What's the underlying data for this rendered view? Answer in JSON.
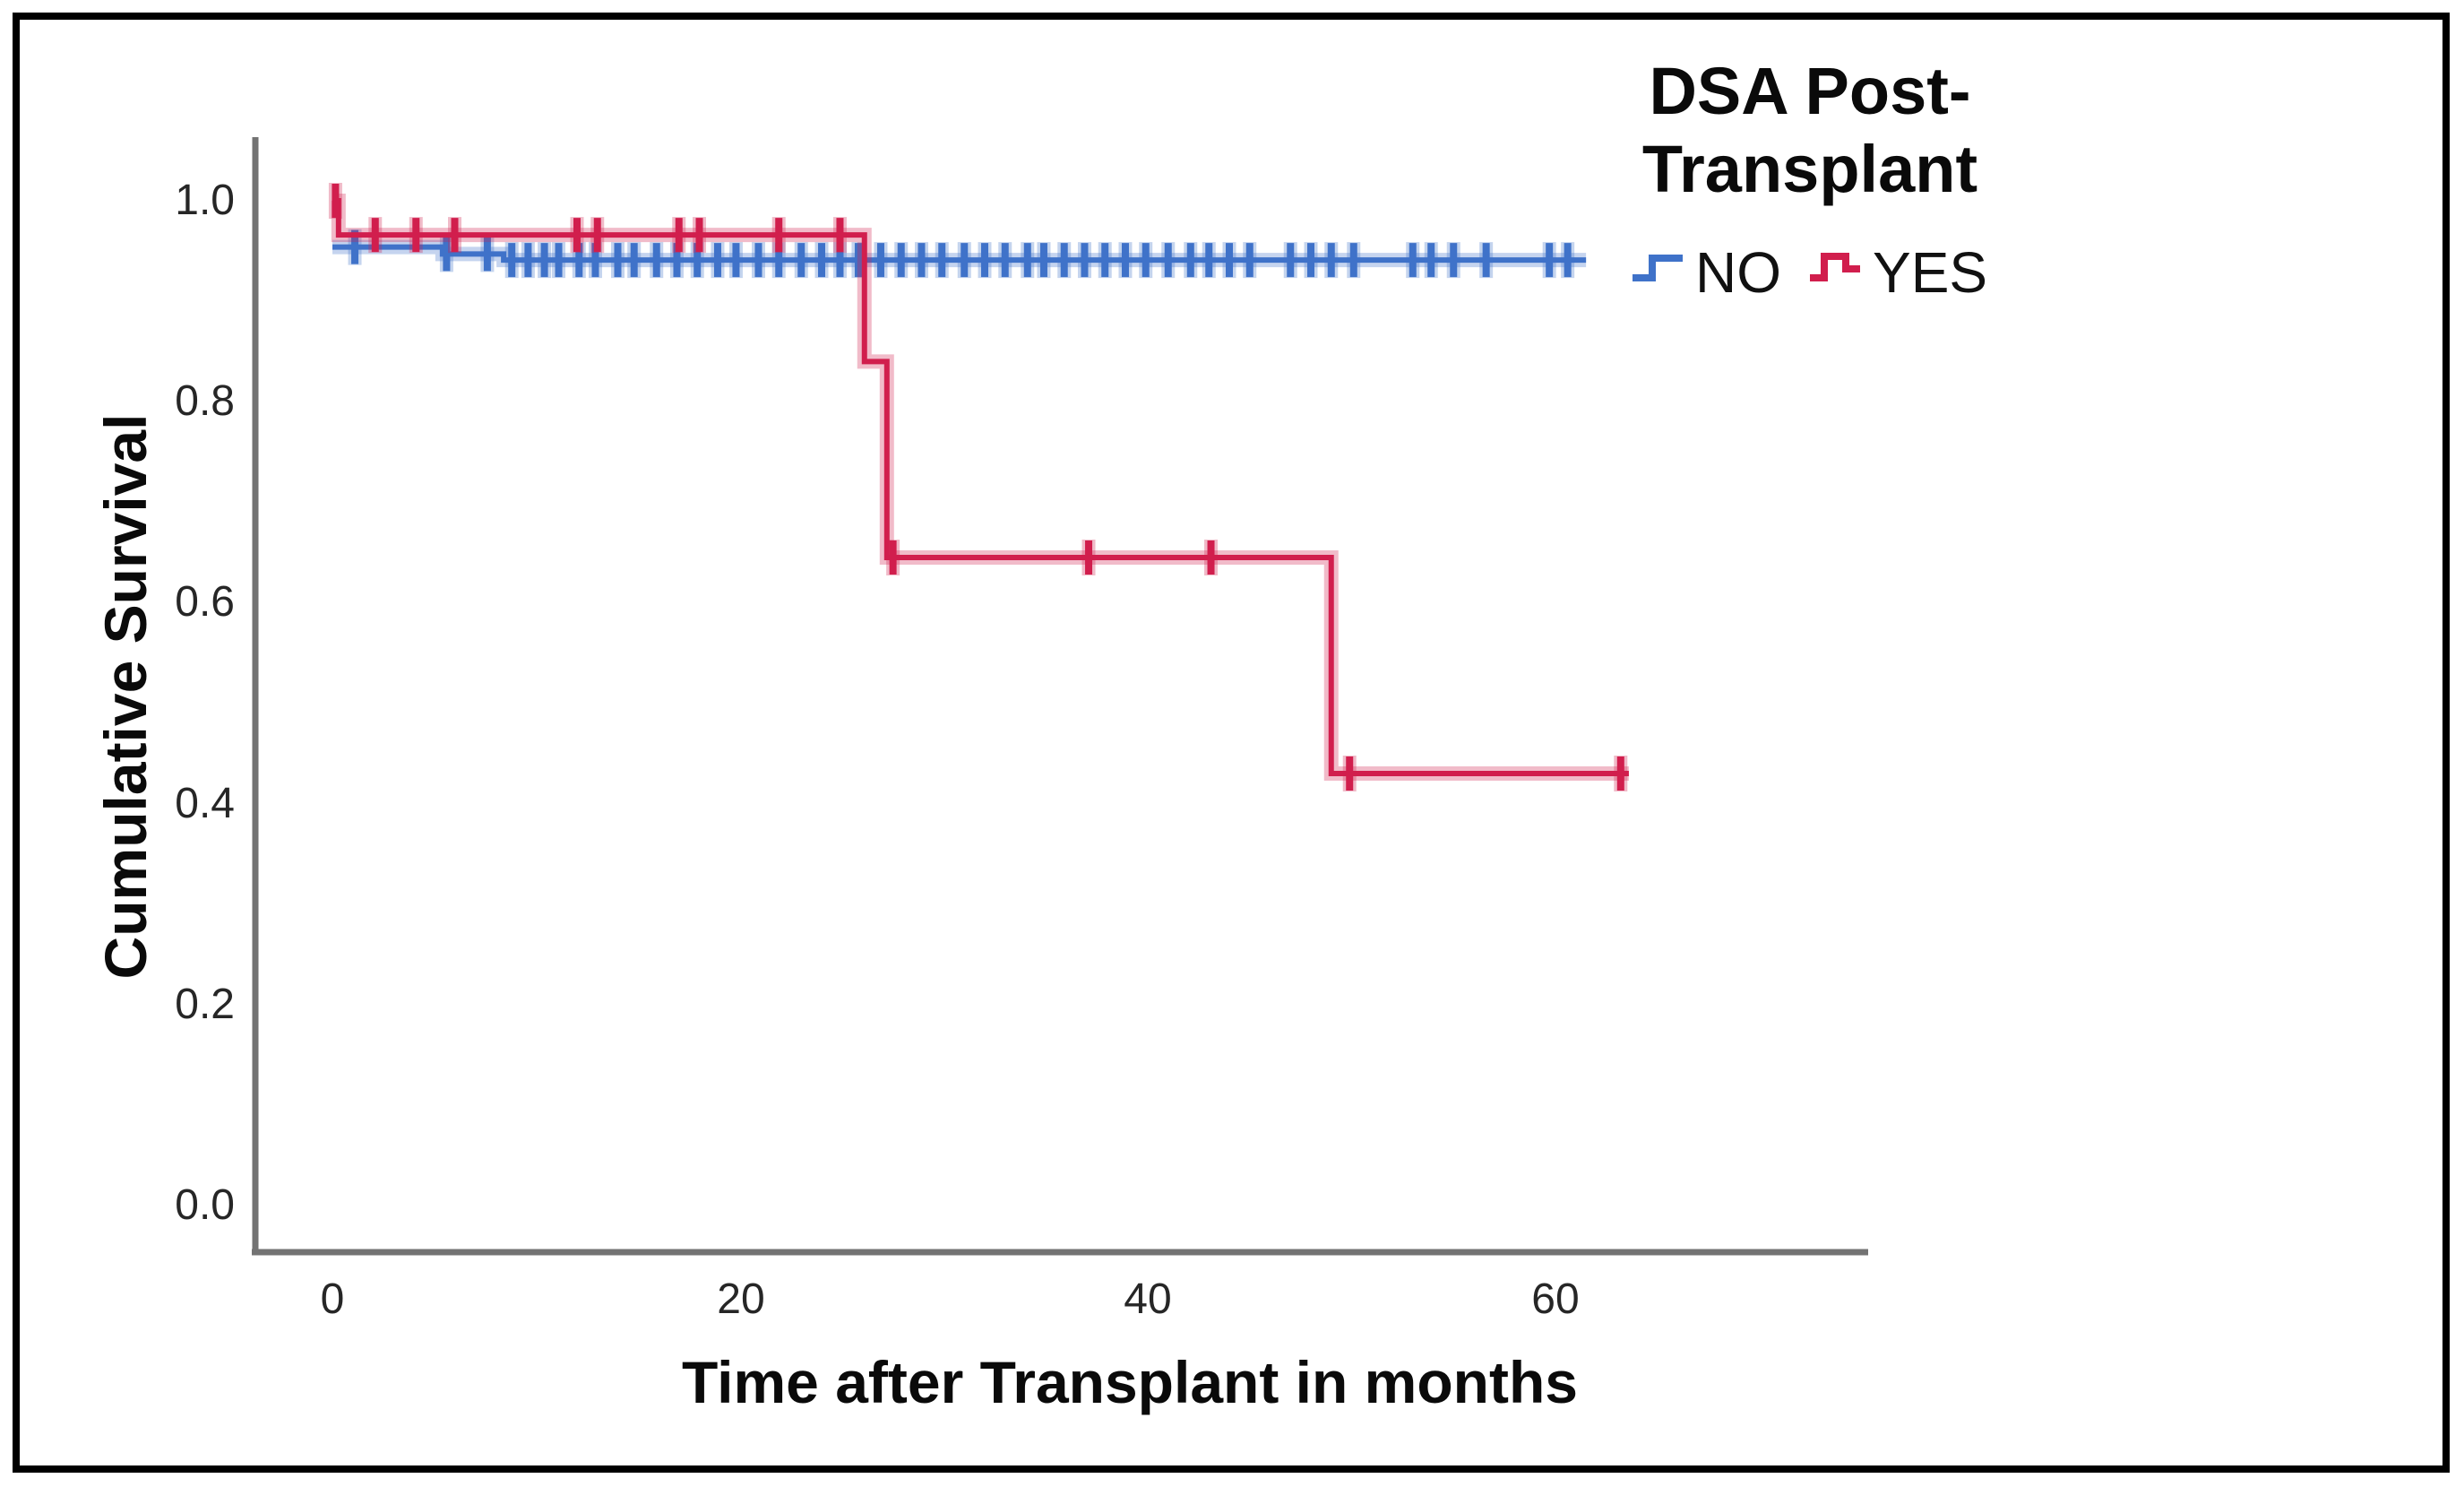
{
  "figure": {
    "background": "#ffffff",
    "border_color": "#000000",
    "axis_color": "#737373",
    "tick_text_color": "#262626"
  },
  "chart_data": {
    "type": "line",
    "subtype": "kaplan-meier-step-survival",
    "title": "",
    "xlabel": "Time after Transplant in months",
    "ylabel": "Cumulative Survival",
    "xticks": [
      "0",
      "20",
      "40",
      "60"
    ],
    "xtick_values": [
      0,
      20,
      40,
      60
    ],
    "yticks": [
      "1.0",
      "0.8",
      "0.6",
      "0.4",
      "0.2",
      "0.0"
    ],
    "ytick_values": [
      1.0,
      0.8,
      0.6,
      0.4,
      0.2,
      0.0
    ],
    "xlim": [
      -4,
      75
    ],
    "ylim": [
      -0.05,
      1.05
    ],
    "grid": false,
    "legend": {
      "title_line1": "DSA Post-",
      "title_line2": "Transplant",
      "position": "top-right",
      "entries": [
        {
          "label": "NO",
          "color": "#3F72C9"
        },
        {
          "label": "YES",
          "color": "#D11E4D"
        }
      ]
    },
    "series": [
      {
        "name": "NO",
        "color": "#3F72C9",
        "halo_opacity": 0.3,
        "steps": [
          [
            0,
            0.954
          ],
          [
            5.4,
            0.947
          ],
          [
            8.4,
            0.941
          ]
        ],
        "end_time": 61.5,
        "censor_times": [
          1.1,
          5.6,
          7.6,
          8.8,
          9.6,
          10.4,
          11.1,
          12.1,
          12.9,
          14.0,
          14.8,
          15.9,
          16.9,
          17.9,
          18.9,
          19.8,
          20.9,
          21.9,
          23.0,
          24.0,
          24.9,
          25.8,
          26.9,
          27.9,
          28.9,
          29.9,
          31.0,
          32.0,
          33.0,
          34.1,
          34.9,
          35.9,
          36.9,
          37.9,
          38.9,
          39.9,
          41.0,
          42.1,
          43.0,
          44.0,
          45.0,
          47.0,
          48.0,
          49.0,
          50.1,
          53.0,
          53.9,
          55.0,
          56.6,
          59.7,
          60.6
        ]
      },
      {
        "name": "YES",
        "color": "#D11E4D",
        "halo_opacity": 0.3,
        "steps": [
          [
            0,
            1.0
          ],
          [
            0.3,
            0.966
          ],
          [
            26.1,
            0.84
          ],
          [
            27.2,
            0.645
          ],
          [
            49.0,
            0.43
          ]
        ],
        "end_time": 63.6,
        "censor_times": [
          0.15,
          2.1,
          4.1,
          6.0,
          12.0,
          13.0,
          17.0,
          18.0,
          21.9,
          24.9,
          27.5,
          37.1,
          43.1,
          49.9,
          63.2
        ]
      }
    ]
  }
}
